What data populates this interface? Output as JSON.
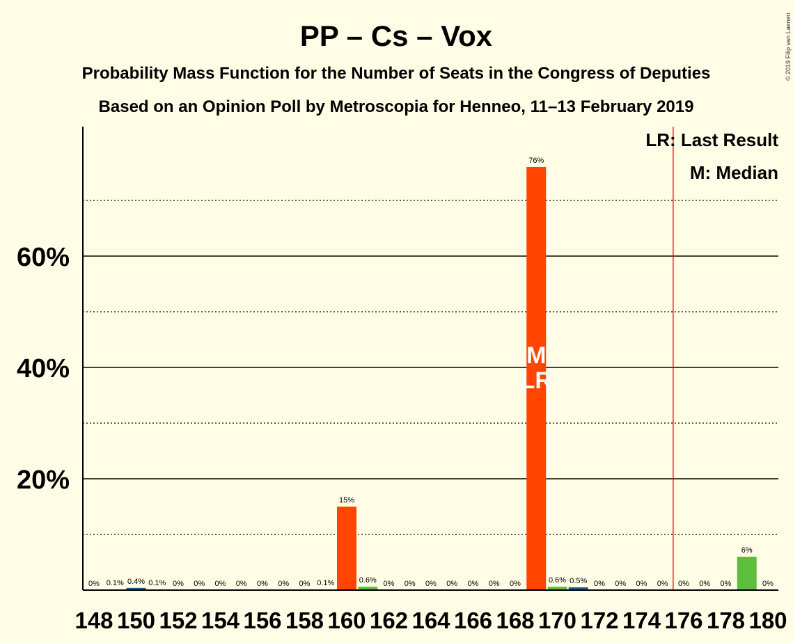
{
  "chart_data": {
    "type": "bar",
    "title": "PP – Cs – Vox",
    "subtitle1": "Probability Mass Function for the Number of Seats in the Congress of Deputies",
    "subtitle2": "Based on an Opinion Poll by Metroscopia for Henneo, 11–13 February 2019",
    "copyright": "© 2019 Filip van Laenen",
    "legend": {
      "last_result": "LR: Last Result",
      "median": "M: Median"
    },
    "ylim": [
      0,
      80
    ],
    "y_ticks": [
      {
        "value": 20,
        "label": "20%"
      },
      {
        "value": 40,
        "label": "40%"
      },
      {
        "value": 60,
        "label": "60%"
      }
    ],
    "y_gridlines_major": [
      20,
      40,
      60
    ],
    "y_gridlines_minor": [
      10,
      30,
      50,
      70
    ],
    "x_tick_labels": [
      "148",
      "150",
      "152",
      "154",
      "156",
      "158",
      "160",
      "162",
      "164",
      "166",
      "168",
      "170",
      "172",
      "174",
      "176",
      "178",
      "180"
    ],
    "last_result_line_at": 175.5,
    "median_seat": 169,
    "last_result_seat": 169,
    "marker_labels": {
      "median": "M",
      "last_result": "LR"
    },
    "bars": [
      {
        "seat": 148,
        "value": 0,
        "label": "0%",
        "color": "#1F5A8C"
      },
      {
        "seat": 149,
        "value": 0.1,
        "label": "0.1%",
        "color": "#1F5A8C"
      },
      {
        "seat": 150,
        "value": 0.4,
        "label": "0.4%",
        "color": "#1F5A8C"
      },
      {
        "seat": 151,
        "value": 0.1,
        "label": "0.1%",
        "color": "#1F5A8C"
      },
      {
        "seat": 152,
        "value": 0,
        "label": "0%",
        "color": "#1F5A8C"
      },
      {
        "seat": 153,
        "value": 0,
        "label": "0%",
        "color": "#1F5A8C"
      },
      {
        "seat": 154,
        "value": 0,
        "label": "0%",
        "color": "#1F5A8C"
      },
      {
        "seat": 155,
        "value": 0,
        "label": "0%",
        "color": "#1F5A8C"
      },
      {
        "seat": 156,
        "value": 0,
        "label": "0%",
        "color": "#1F5A8C"
      },
      {
        "seat": 157,
        "value": 0,
        "label": "0%",
        "color": "#1F5A8C"
      },
      {
        "seat": 158,
        "value": 0,
        "label": "0%",
        "color": "#1F5A8C"
      },
      {
        "seat": 159,
        "value": 0.1,
        "label": "0.1%",
        "color": "#1F5A8C"
      },
      {
        "seat": 160,
        "value": 15,
        "label": "15%",
        "color": "#FF4500"
      },
      {
        "seat": 161,
        "value": 0.6,
        "label": "0.6%",
        "color": "#5DBE3E"
      },
      {
        "seat": 162,
        "value": 0,
        "label": "0%",
        "color": "#1F5A8C"
      },
      {
        "seat": 163,
        "value": 0,
        "label": "0%",
        "color": "#1F5A8C"
      },
      {
        "seat": 164,
        "value": 0,
        "label": "0%",
        "color": "#1F5A8C"
      },
      {
        "seat": 165,
        "value": 0,
        "label": "0%",
        "color": "#1F5A8C"
      },
      {
        "seat": 166,
        "value": 0,
        "label": "0%",
        "color": "#1F5A8C"
      },
      {
        "seat": 167,
        "value": 0,
        "label": "0%",
        "color": "#1F5A8C"
      },
      {
        "seat": 168,
        "value": 0,
        "label": "0%",
        "color": "#1F5A8C"
      },
      {
        "seat": 169,
        "value": 76,
        "label": "76%",
        "color": "#FF4500"
      },
      {
        "seat": 170,
        "value": 0.6,
        "label": "0.6%",
        "color": "#5DBE3E"
      },
      {
        "seat": 171,
        "value": 0.5,
        "label": "0.5%",
        "color": "#1F5A8C"
      },
      {
        "seat": 172,
        "value": 0,
        "label": "0%",
        "color": "#1F5A8C"
      },
      {
        "seat": 173,
        "value": 0,
        "label": "0%",
        "color": "#1F5A8C"
      },
      {
        "seat": 174,
        "value": 0,
        "label": "0%",
        "color": "#1F5A8C"
      },
      {
        "seat": 175,
        "value": 0,
        "label": "0%",
        "color": "#1F5A8C"
      },
      {
        "seat": 176,
        "value": 0,
        "label": "0%",
        "color": "#1F5A8C"
      },
      {
        "seat": 177,
        "value": 0,
        "label": "0%",
        "color": "#1F5A8C"
      },
      {
        "seat": 178,
        "value": 0,
        "label": "0%",
        "color": "#1F5A8C"
      },
      {
        "seat": 179,
        "value": 6,
        "label": "6%",
        "color": "#5DBE3E"
      },
      {
        "seat": 180,
        "value": 0,
        "label": "0%",
        "color": "#1F5A8C"
      }
    ],
    "colors": {
      "background": "#FFFDE6",
      "last_result_line": "#FF0000",
      "axis": "#000000"
    }
  }
}
